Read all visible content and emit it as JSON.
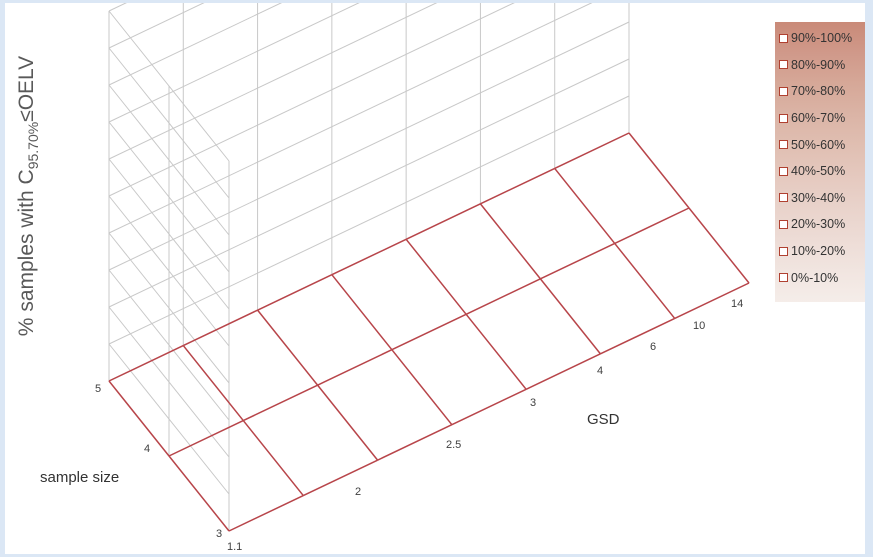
{
  "chart_data": {
    "type": "surface",
    "title": "",
    "zlabel_main": "% samples with C",
    "zlabel_sub": "95.70%",
    "zlabel_tail": "≤OELV",
    "xlabel": "GSD",
    "ylabel": "sample size",
    "x_ticks": [
      "1.1",
      "2",
      "2.5",
      "3",
      "4",
      "6",
      "10",
      "14"
    ],
    "y_ticks": [
      "3",
      "4",
      "5"
    ],
    "zlim": [
      0,
      100
    ],
    "grid": true,
    "legend_position": "right",
    "legend": [
      "90%-100%",
      "80%-90%",
      "70%-80%",
      "60%-70%",
      "50%-60%",
      "40%-50%",
      "30%-40%",
      "20%-30%",
      "10%-20%",
      "0%-10%"
    ],
    "legend_colors": [
      "#c98a78",
      "#d0998a",
      "#d6a898",
      "#dbb4a6",
      "#e0bfb2",
      "#e5c9bf",
      "#e9d3cb",
      "#eddcd6",
      "#f1e5e0",
      "#f5ede9"
    ],
    "series": [
      {
        "y": "3",
        "values": [
          0,
          0,
          0,
          0,
          0,
          0,
          0,
          0
        ]
      },
      {
        "y": "4",
        "values": [
          0,
          0,
          0,
          0,
          0,
          0,
          0,
          0
        ]
      },
      {
        "y": "5",
        "values": [
          0,
          0,
          0,
          0,
          0,
          0,
          0,
          0
        ]
      }
    ],
    "colors": {
      "surface_line": "#b8454a",
      "grid": "#c8c8c8"
    }
  }
}
